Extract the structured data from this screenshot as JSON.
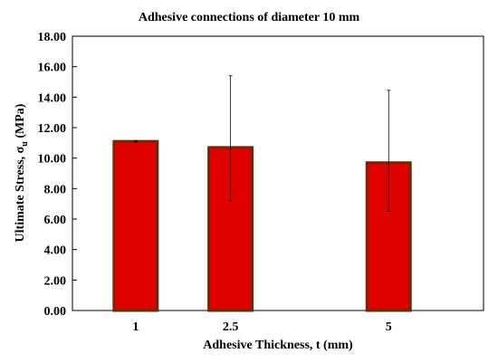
{
  "chart_data": {
    "type": "bar",
    "title": "Adhesive connections of diameter 10 mm",
    "xlabel": "Adhesive Thickness, t (mm)",
    "ylabel": {
      "main": "Ultimate Stress, σ",
      "subscript": "u",
      "unit": " (MPa)"
    },
    "categories": [
      "1",
      "2.5",
      "5"
    ],
    "x_positions": [
      1,
      2.5,
      5
    ],
    "xlim": [
      0,
      6.5
    ],
    "series": [
      {
        "values": [
          11.1,
          10.7,
          9.7
        ],
        "error_upper": [
          11.15,
          15.4,
          14.45
        ],
        "error_lower": [
          11.05,
          7.2,
          6.5
        ]
      }
    ],
    "ylim": [
      0,
      18
    ],
    "ytick_step": 2,
    "ytick_labels": [
      "0.00",
      "2.00",
      "4.00",
      "6.00",
      "8.00",
      "10.00",
      "12.00",
      "14.00",
      "16.00",
      "18.00"
    ],
    "grid": false,
    "legend": "none",
    "colors": {
      "bar_fill": "#e00000",
      "bar_edge": "#6b2a0a",
      "error_bar": "#000000",
      "axis": "#000000"
    }
  }
}
